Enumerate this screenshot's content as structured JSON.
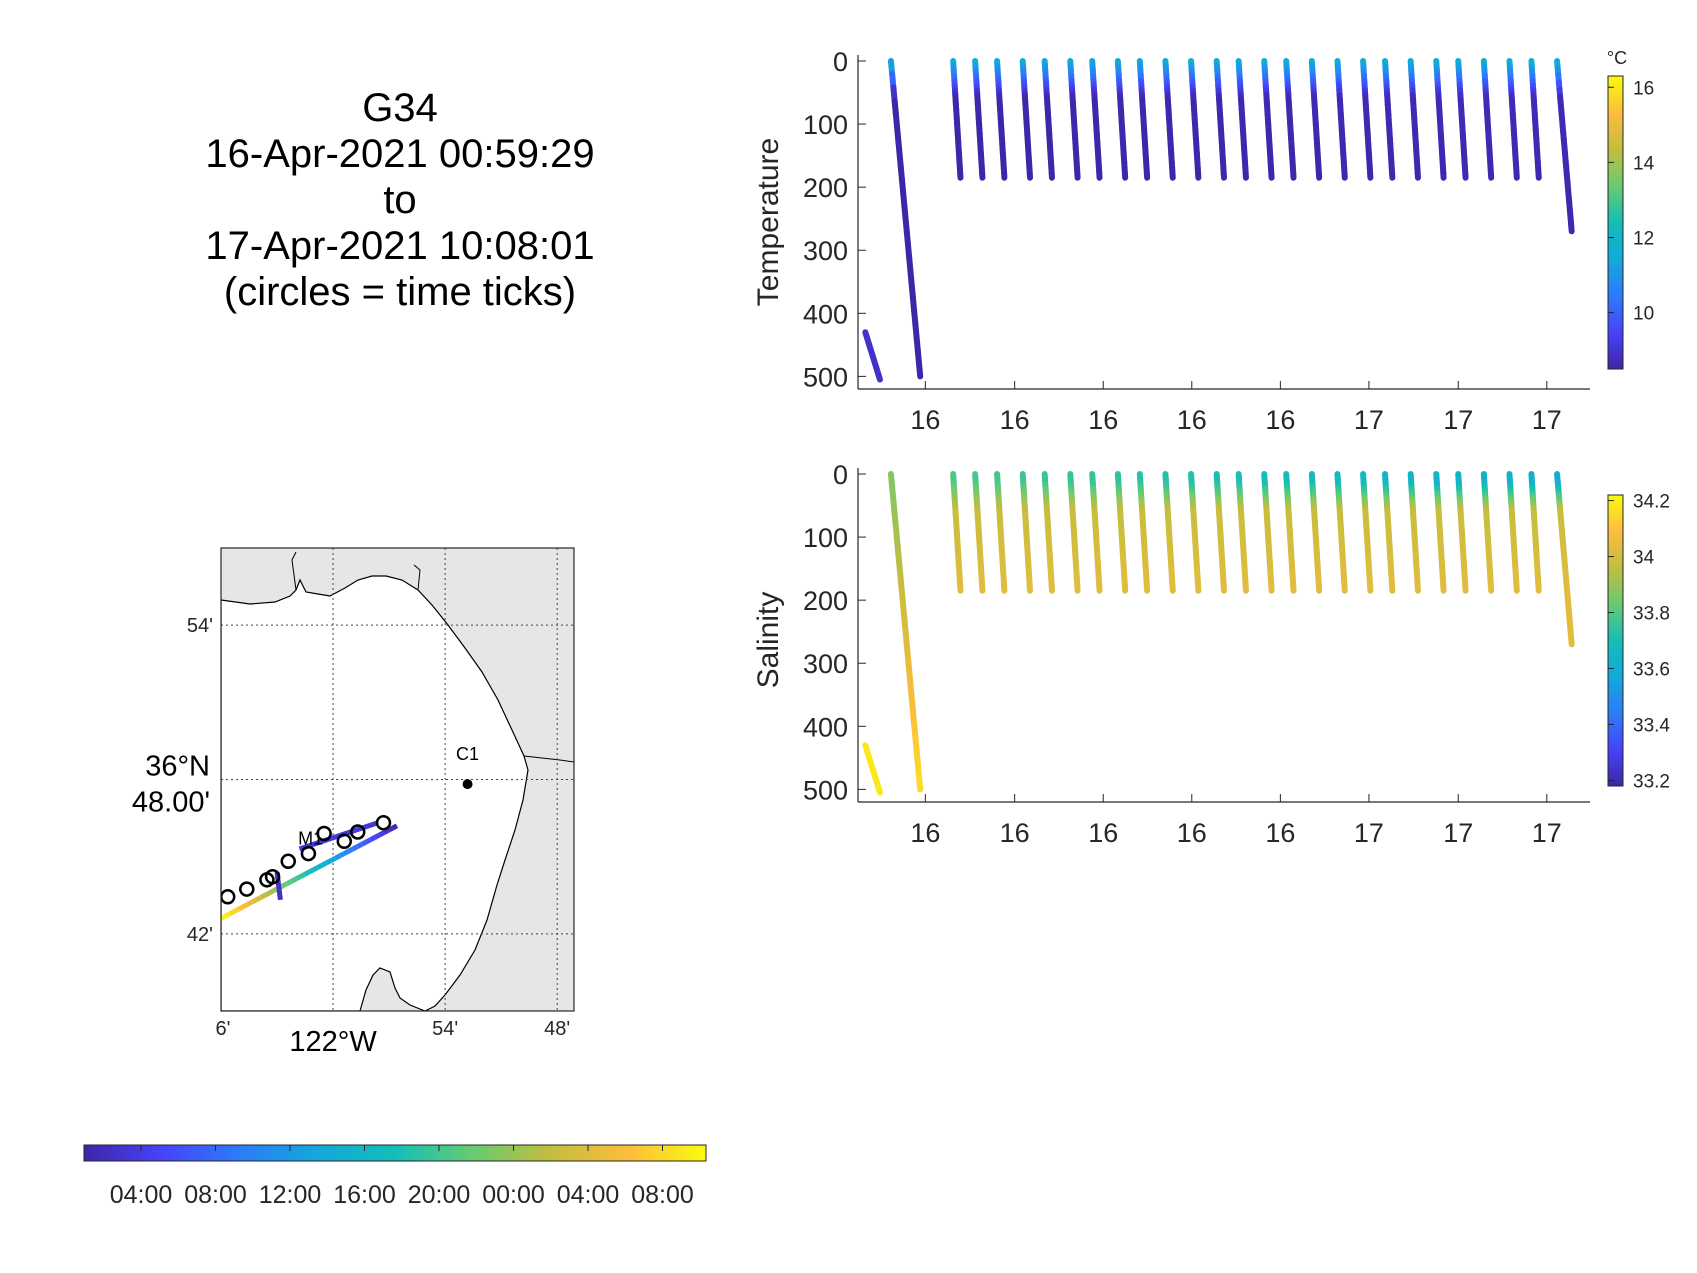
{
  "title": {
    "line1": "G34",
    "line2": "16-Apr-2021 00:59:29",
    "line3": "to",
    "line4": "17-Apr-2021 10:08:01",
    "line5": "(circles = time ticks)"
  },
  "colors": {
    "parula": [
      "#3E26A8",
      "#4743F8",
      "#2C7CF9",
      "#13A8DB",
      "#13BEB8",
      "#67CB70",
      "#C3BD3F",
      "#FDBD3C",
      "#F9FB0E"
    ],
    "land": "#e6e6e6",
    "water": "#ffffff",
    "grid": "#555555"
  },
  "chart_data": [
    {
      "type": "scatter",
      "name": "temperature-section",
      "title": "",
      "ylabel": "Temperature",
      "xlabel": "",
      "ylim": [
        0,
        520
      ],
      "y_reversed": true,
      "yticks": [
        0,
        100,
        200,
        300,
        400,
        500
      ],
      "xtick_labels": [
        "16",
        "16",
        "16",
        "16",
        "16",
        "17",
        "17",
        "17"
      ],
      "colorbar": {
        "unit": "°C",
        "ticks": [
          16,
          14,
          12,
          10
        ],
        "range": [
          8.5,
          16.3
        ]
      },
      "profiles": [
        {
          "t0": 0.01,
          "t1": 0.03,
          "z0": 430,
          "z1": 505
        },
        {
          "t0": 0.045,
          "t1": 0.085,
          "z0": 0,
          "z1": 500
        },
        {
          "t0": 0.13,
          "t1": 0.14,
          "z0": 0,
          "z1": 185
        },
        {
          "t0": 0.16,
          "t1": 0.17,
          "z0": 0,
          "z1": 185
        },
        {
          "t0": 0.19,
          "t1": 0.2,
          "z0": 0,
          "z1": 185
        },
        {
          "t0": 0.225,
          "t1": 0.235,
          "z0": 0,
          "z1": 185
        },
        {
          "t0": 0.255,
          "t1": 0.265,
          "z0": 0,
          "z1": 185
        },
        {
          "t0": 0.29,
          "t1": 0.3,
          "z0": 0,
          "z1": 185
        },
        {
          "t0": 0.32,
          "t1": 0.33,
          "z0": 0,
          "z1": 185
        },
        {
          "t0": 0.355,
          "t1": 0.365,
          "z0": 0,
          "z1": 185
        },
        {
          "t0": 0.385,
          "t1": 0.395,
          "z0": 0,
          "z1": 185
        },
        {
          "t0": 0.42,
          "t1": 0.43,
          "z0": 0,
          "z1": 185
        },
        {
          "t0": 0.455,
          "t1": 0.465,
          "z0": 0,
          "z1": 185
        },
        {
          "t0": 0.49,
          "t1": 0.5,
          "z0": 0,
          "z1": 185
        },
        {
          "t0": 0.52,
          "t1": 0.53,
          "z0": 0,
          "z1": 185
        },
        {
          "t0": 0.555,
          "t1": 0.565,
          "z0": 0,
          "z1": 185
        },
        {
          "t0": 0.585,
          "t1": 0.595,
          "z0": 0,
          "z1": 185
        },
        {
          "t0": 0.62,
          "t1": 0.63,
          "z0": 0,
          "z1": 185
        },
        {
          "t0": 0.655,
          "t1": 0.665,
          "z0": 0,
          "z1": 185
        },
        {
          "t0": 0.69,
          "t1": 0.7,
          "z0": 0,
          "z1": 185
        },
        {
          "t0": 0.72,
          "t1": 0.73,
          "z0": 0,
          "z1": 185
        },
        {
          "t0": 0.755,
          "t1": 0.765,
          "z0": 0,
          "z1": 185
        },
        {
          "t0": 0.79,
          "t1": 0.8,
          "z0": 0,
          "z1": 185
        },
        {
          "t0": 0.82,
          "t1": 0.83,
          "z0": 0,
          "z1": 185
        },
        {
          "t0": 0.855,
          "t1": 0.865,
          "z0": 0,
          "z1": 185
        },
        {
          "t0": 0.89,
          "t1": 0.9,
          "z0": 0,
          "z1": 185
        },
        {
          "t0": 0.92,
          "t1": 0.93,
          "z0": 0,
          "z1": 185
        },
        {
          "t0": 0.955,
          "t1": 0.975,
          "z0": 0,
          "z1": 270
        }
      ]
    },
    {
      "type": "scatter",
      "name": "salinity-section",
      "title": "",
      "ylabel": "Salinity",
      "xlabel": "",
      "ylim": [
        0,
        520
      ],
      "y_reversed": true,
      "yticks": [
        0,
        100,
        200,
        300,
        400,
        500
      ],
      "xtick_labels": [
        "16",
        "16",
        "16",
        "16",
        "16",
        "17",
        "17",
        "17"
      ],
      "colorbar": {
        "unit": "",
        "ticks": [
          34.2,
          34,
          33.8,
          33.6,
          33.4,
          33.2
        ],
        "range": [
          33.18,
          34.22
        ]
      },
      "profiles": "same as temperature-section"
    },
    {
      "type": "map",
      "name": "glider-track-map",
      "lat_labels": [
        "54'",
        "36°N 48.00'",
        "42'"
      ],
      "lon_labels": [
        "6'",
        "122°W",
        "54'",
        "48'"
      ],
      "stations": [
        {
          "label": "M1",
          "lon": -122.02,
          "lat": 36.75
        },
        {
          "label": "C1",
          "lon": -121.88,
          "lat": 36.797
        }
      ],
      "track": {
        "start": {
          "lon": -122.1,
          "lat": 36.71
        },
        "end": {
          "lon": -121.943,
          "lat": 36.77
        }
      },
      "time_circles": [
        {
          "lon": -122.094,
          "lat": 36.724
        },
        {
          "lon": -122.077,
          "lat": 36.729
        },
        {
          "lon": -122.059,
          "lat": 36.735
        },
        {
          "lon": -122.054,
          "lat": 36.737
        },
        {
          "lon": -122.04,
          "lat": 36.747
        },
        {
          "lon": -122.022,
          "lat": 36.752
        },
        {
          "lon": -122.008,
          "lat": 36.765
        },
        {
          "lon": -121.99,
          "lat": 36.76
        },
        {
          "lon": -121.978,
          "lat": 36.766
        },
        {
          "lon": -121.955,
          "lat": 36.772
        }
      ]
    },
    {
      "type": "colorbar",
      "name": "time-colorbar",
      "tick_labels": [
        "04:00",
        "08:00",
        "12:00",
        "16:00",
        "20:00",
        "00:00",
        "04:00",
        "08:00"
      ]
    }
  ]
}
